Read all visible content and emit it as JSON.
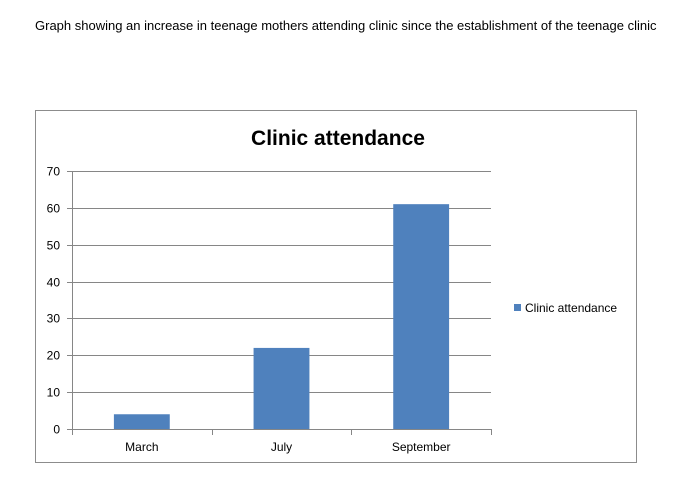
{
  "caption": "Graph showing an increase in teenage mothers attending clinic since the establishment of the teenage clinic",
  "chart_data": {
    "type": "bar",
    "title": "Clinic attendance",
    "categories": [
      "March",
      "July",
      "September"
    ],
    "series": [
      {
        "name": "Clinic attendance",
        "values": [
          4,
          22,
          61
        ],
        "color": "#4f81bd"
      }
    ],
    "xlabel": "",
    "ylabel": "",
    "ylim": [
      0,
      70
    ],
    "yticks": [
      0,
      10,
      20,
      30,
      40,
      50,
      60,
      70
    ],
    "grid": true,
    "legend_position": "right"
  }
}
